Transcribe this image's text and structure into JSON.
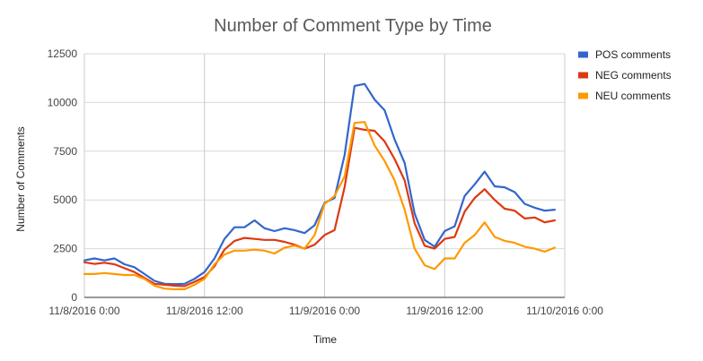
{
  "chart_data": {
    "type": "line",
    "title": "Number of Comment Type by Time",
    "xlabel": "Time",
    "ylabel": "Number of Comments",
    "ylim": [
      0,
      12500
    ],
    "yticks": [
      "0",
      "2500",
      "5000",
      "7500",
      "10000",
      "12500"
    ],
    "xticks": [
      "11/8/2016 0:00",
      "11/8/2016 12:00",
      "11/9/2016 0:00",
      "11/9/2016 12:00",
      "11/10/2016 0:00"
    ],
    "x_hours": [
      0,
      1,
      2,
      3,
      4,
      5,
      6,
      7,
      8,
      9,
      10,
      11,
      12,
      13,
      14,
      15,
      16,
      17,
      18,
      19,
      20,
      21,
      22,
      23,
      24,
      25,
      26,
      27,
      28,
      29,
      30,
      31,
      32,
      33,
      34,
      35,
      36,
      37,
      38,
      39,
      40,
      41,
      42,
      43,
      44,
      45,
      46,
      47
    ],
    "grid": true,
    "legend_position": "right",
    "series": [
      {
        "name": "POS comments",
        "color": "#3366cc",
        "values": [
          1900,
          2000,
          1900,
          2000,
          1700,
          1550,
          1200,
          850,
          700,
          680,
          700,
          950,
          1300,
          2000,
          3000,
          3600,
          3600,
          3950,
          3550,
          3400,
          3550,
          3450,
          3300,
          3700,
          4850,
          5100,
          7300,
          10850,
          10950,
          10150,
          9600,
          8100,
          6900,
          4300,
          2950,
          2600,
          3400,
          3650,
          5200,
          5800,
          6450,
          5700,
          5650,
          5400,
          4800,
          4600,
          4450,
          4500
        ]
      },
      {
        "name": "NEG comments",
        "color": "#dc3912",
        "values": [
          1800,
          1720,
          1780,
          1700,
          1500,
          1300,
          1000,
          700,
          650,
          600,
          580,
          800,
          1050,
          1600,
          2450,
          2900,
          3050,
          3000,
          2950,
          2950,
          2850,
          2700,
          2500,
          2700,
          3200,
          3450,
          5650,
          8700,
          8600,
          8550,
          8000,
          7100,
          6000,
          3800,
          2650,
          2500,
          3000,
          3100,
          4400,
          5100,
          5550,
          5000,
          4550,
          4450,
          4050,
          4100,
          3850,
          3950
        ]
      },
      {
        "name": "NEU comments",
        "color": "#ff9900",
        "values": [
          1200,
          1200,
          1250,
          1200,
          1150,
          1150,
          950,
          600,
          450,
          420,
          420,
          650,
          950,
          1700,
          2200,
          2400,
          2400,
          2450,
          2400,
          2250,
          2550,
          2650,
          2500,
          3200,
          4800,
          5200,
          6200,
          8950,
          9000,
          7800,
          7000,
          6000,
          4500,
          2500,
          1650,
          1450,
          2000,
          2000,
          2800,
          3200,
          3850,
          3100,
          2900,
          2800,
          2600,
          2500,
          2350,
          2550
        ]
      }
    ]
  }
}
